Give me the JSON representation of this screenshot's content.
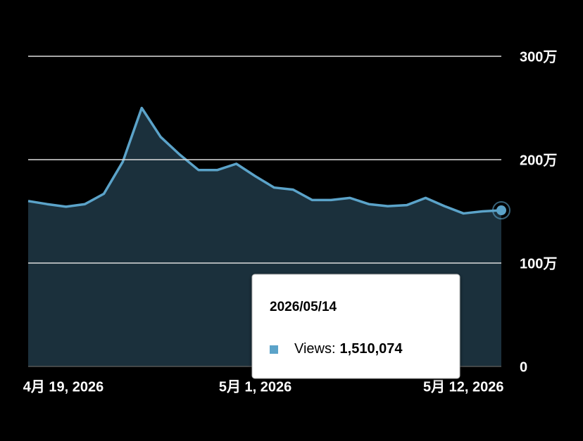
{
  "chart_data": {
    "type": "area",
    "x": [
      "2026-04-19",
      "2026-04-20",
      "2026-04-21",
      "2026-04-22",
      "2026-04-23",
      "2026-04-24",
      "2026-04-25",
      "2026-04-26",
      "2026-04-27",
      "2026-04-28",
      "2026-04-29",
      "2026-04-30",
      "2026-05-01",
      "2026-05-02",
      "2026-05-03",
      "2026-05-04",
      "2026-05-05",
      "2026-05-06",
      "2026-05-07",
      "2026-05-08",
      "2026-05-09",
      "2026-05-10",
      "2026-05-11",
      "2026-05-12",
      "2026-05-13",
      "2026-05-14"
    ],
    "series": [
      {
        "name": "Views",
        "color": "#5ba3c9",
        "fill": "#1b303c",
        "values": [
          1600000,
          1570000,
          1545000,
          1570000,
          1670000,
          1980000,
          2500000,
          2220000,
          2050000,
          1900000,
          1900000,
          1960000,
          1840000,
          1730000,
          1710000,
          1610000,
          1610000,
          1630000,
          1570000,
          1550000,
          1560000,
          1630000,
          1550000,
          1480000,
          1500000,
          1510074
        ]
      }
    ],
    "ylim": [
      0,
      3000000
    ],
    "yticks": [
      0,
      {
        "value": 1000000,
        "label": "100万"
      },
      {
        "value": 2000000,
        "label": "200万"
      },
      {
        "value": 3000000,
        "label": "300万"
      }
    ],
    "xticks": [
      {
        "value": "2026-04-19",
        "label": "4月 19, 2026"
      },
      {
        "value": "2026-05-01",
        "label": "5月 1, 2026"
      },
      {
        "value": "2026-05-12",
        "label": "5月 12, 2026"
      }
    ],
    "grid": true,
    "tooltip": {
      "title": "2026/05/14",
      "label": "Views:",
      "value": "1,510,074"
    }
  }
}
